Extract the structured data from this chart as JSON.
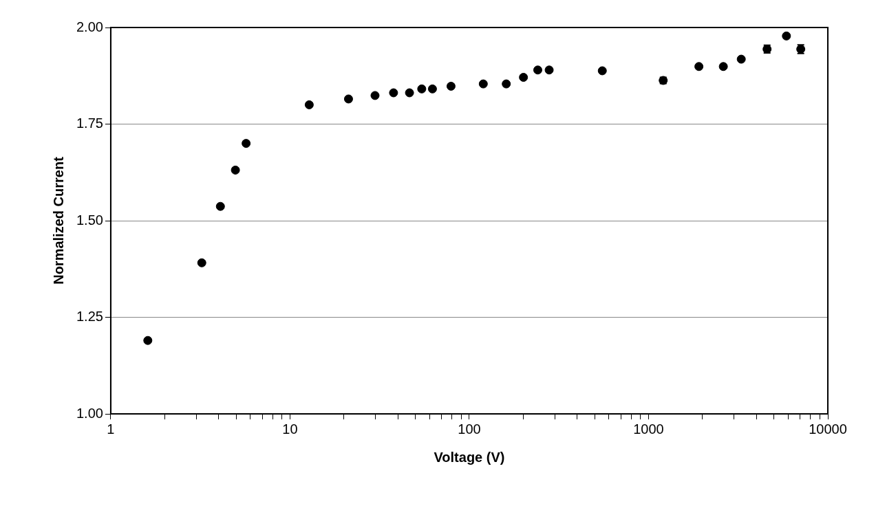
{
  "chart_data": {
    "type": "scatter",
    "xlabel": "Voltage (V)",
    "ylabel": "Normalized Current",
    "log": "x",
    "grid": "y",
    "marker": "circle",
    "legend": false,
    "xlim": [
      1,
      10000
    ],
    "ylim": [
      1.0,
      2.0
    ],
    "xticks": [
      1,
      {
        "value": 2,
        "label": null
      },
      {
        "value": 3,
        "label": null
      },
      {
        "value": 4,
        "label": null
      },
      {
        "value": 5,
        "label": null
      },
      {
        "value": 6,
        "label": null
      },
      {
        "value": 7,
        "label": null
      },
      {
        "value": 8,
        "label": null
      },
      {
        "value": 9,
        "label": null
      },
      10,
      {
        "value": 20,
        "label": null
      },
      {
        "value": 30,
        "label": null
      },
      {
        "value": 40,
        "label": null
      },
      {
        "value": 50,
        "label": null
      },
      {
        "value": 60,
        "label": null
      },
      {
        "value": 70,
        "label": null
      },
      {
        "value": 80,
        "label": null
      },
      {
        "value": 90,
        "label": null
      },
      100,
      {
        "value": 200,
        "label": null
      },
      {
        "value": 300,
        "label": null
      },
      {
        "value": 400,
        "label": null
      },
      {
        "value": 500,
        "label": null
      },
      {
        "value": 600,
        "label": null
      },
      {
        "value": 700,
        "label": null
      },
      {
        "value": 800,
        "label": null
      },
      {
        "value": 900,
        "label": null
      },
      1000,
      {
        "value": 2000,
        "label": null
      },
      {
        "value": 3000,
        "label": null
      },
      {
        "value": 4000,
        "label": null
      },
      {
        "value": 5000,
        "label": null
      },
      {
        "value": 6000,
        "label": null
      },
      {
        "value": 7000,
        "label": null
      },
      {
        "value": 8000,
        "label": null
      },
      {
        "value": 9000,
        "label": null
      },
      10000
    ],
    "yticks": [
      {
        "value": 1.0,
        "label": "1.00"
      },
      {
        "value": 1.25,
        "label": "1.25"
      },
      {
        "value": 1.5,
        "label": "1.50"
      },
      {
        "value": 1.75,
        "label": "1.75"
      },
      {
        "value": 2.0,
        "label": "2.00"
      }
    ],
    "series": [
      {
        "color": "#000000",
        "x": [
          1.61,
          3.22,
          4.09,
          4.96,
          5.69,
          12.8,
          21.2,
          29.8,
          37.8,
          46.4,
          54.3,
          62.3,
          79.1,
          119.7,
          160.8,
          200.5,
          241,
          279,
          552,
          1207,
          1909,
          2613,
          3289,
          4583,
          5875,
          7063
        ],
        "values": [
          1.19,
          1.391,
          1.537,
          1.631,
          1.7,
          1.8,
          1.815,
          1.824,
          1.831,
          1.831,
          1.841,
          1.841,
          1.848,
          1.854,
          1.854,
          1.871,
          1.89,
          1.89,
          1.888,
          1.863,
          1.899,
          1.899,
          1.918,
          1.944,
          1.978,
          1.944
        ],
        "errors": [
          null,
          null,
          null,
          null,
          null,
          null,
          null,
          null,
          null,
          null,
          null,
          null,
          null,
          null,
          null,
          null,
          null,
          null,
          null,
          0.008,
          null,
          null,
          null,
          0.01,
          null,
          0.011
        ]
      }
    ]
  }
}
